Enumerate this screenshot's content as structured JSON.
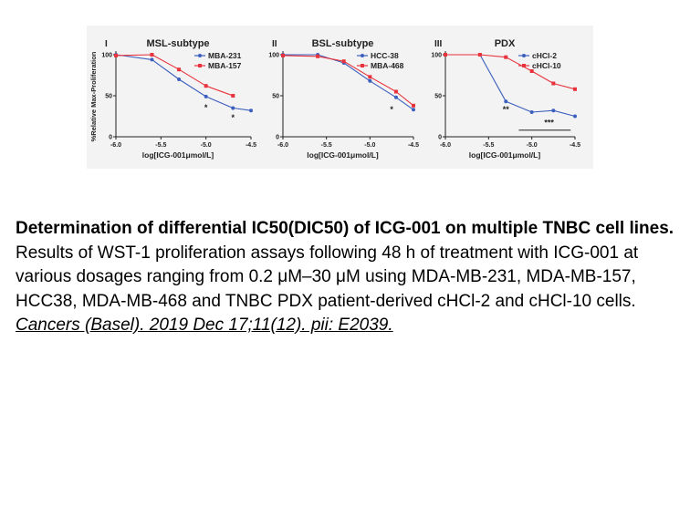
{
  "figure": {
    "y_axis_title": "%Relative Max-Proliferation",
    "x_axis_title": "log[ICG-001μmol/L]",
    "colors": {
      "series1": "#3b5fbe",
      "series2": "#e8323c",
      "axis": "#222222"
    }
  },
  "chart_data": [
    {
      "type": "scatter",
      "panel_label": "I",
      "title": "MSL-subtype",
      "xlabel": "log[ICG-001μmol/L]",
      "ylabel": "%Relative Max-Proliferation",
      "xlim": [
        -6.0,
        -4.5
      ],
      "ylim": [
        0,
        100
      ],
      "x_ticks": [
        "-6.0",
        "-5.5",
        "-5.0",
        "-4.5"
      ],
      "y_ticks": [
        "0",
        "50",
        "100"
      ],
      "legend_position": "top-right",
      "series": [
        {
          "name": "MBA-231",
          "x": [
            -6.0,
            -5.6,
            -5.3,
            -5.0,
            -4.7,
            -4.5
          ],
          "y": [
            100,
            94,
            70,
            49,
            35,
            32
          ]
        },
        {
          "name": "MBA-157",
          "x": [
            -6.0,
            -5.6,
            -5.3,
            -5.0,
            -4.7
          ],
          "y": [
            99,
            100,
            82,
            62,
            50
          ]
        }
      ],
      "annotations": [
        {
          "text": "*",
          "x": -5.0,
          "y": 32
        },
        {
          "text": "*",
          "x": -4.7,
          "y": 20
        }
      ]
    },
    {
      "type": "scatter",
      "panel_label": "II",
      "title": "BSL-subtype",
      "xlabel": "log[ICG-001μmol/L]",
      "ylabel": "",
      "xlim": [
        -6.0,
        -4.5
      ],
      "ylim": [
        0,
        100
      ],
      "x_ticks": [
        "-6.0",
        "-5.5",
        "-5.0",
        "-4.5"
      ],
      "y_ticks": [
        "0",
        "50",
        "100"
      ],
      "legend_position": "top-right",
      "series": [
        {
          "name": "HCC-38",
          "x": [
            -6.0,
            -5.6,
            -5.3,
            -5.0,
            -4.7,
            -4.5
          ],
          "y": [
            100,
            100,
            90,
            68,
            48,
            33
          ]
        },
        {
          "name": "MBA-468",
          "x": [
            -6.0,
            -5.6,
            -5.3,
            -5.0,
            -4.7,
            -4.5
          ],
          "y": [
            99,
            98,
            92,
            73,
            55,
            38
          ]
        }
      ],
      "annotations": [
        {
          "text": "*",
          "x": -4.75,
          "y": 30
        }
      ]
    },
    {
      "type": "scatter",
      "panel_label": "III",
      "title": "PDX",
      "xlabel": "log[ICG-001μmol/L]",
      "ylabel": "",
      "xlim": [
        -6.0,
        -4.5
      ],
      "ylim": [
        0,
        100
      ],
      "x_ticks": [
        "-6.0",
        "-5.5",
        "-5.0",
        "-4.5"
      ],
      "y_ticks": [
        "0",
        "50",
        "100"
      ],
      "legend_position": "top-right",
      "series": [
        {
          "name": "cHCl-2",
          "x": [
            -6.0,
            -5.6,
            -5.3,
            -5.0,
            -4.75,
            -4.5
          ],
          "y": [
            100,
            100,
            43,
            30,
            32,
            25
          ]
        },
        {
          "name": "cHCl-10",
          "x": [
            -6.0,
            -5.6,
            -5.3,
            -5.0,
            -4.75,
            -4.5
          ],
          "y": [
            100,
            100,
            97,
            80,
            65,
            58
          ]
        }
      ],
      "annotations": [
        {
          "text": "**",
          "x": -5.3,
          "y": 30
        },
        {
          "text": "***",
          "x": -4.8,
          "y": 14
        }
      ]
    }
  ],
  "caption": {
    "title": "Determination of differential IC50(DIC50) of ICG-001 on multiple TNBC cell lines.",
    "body": "Results of WST-1 proliferation assays following 48 h of treatment with ICG-001 at various dosages ranging from 0.2 μM–30 μM using MDA-MB-231, MDA-MB-157, HCC38, MDA-MB-468 and TNBC PDX patient-derived cHCl-2 and cHCl-10 cells. ",
    "citation": "Cancers (Basel). 2019 Dec 17;11(12). pii: E2039."
  }
}
